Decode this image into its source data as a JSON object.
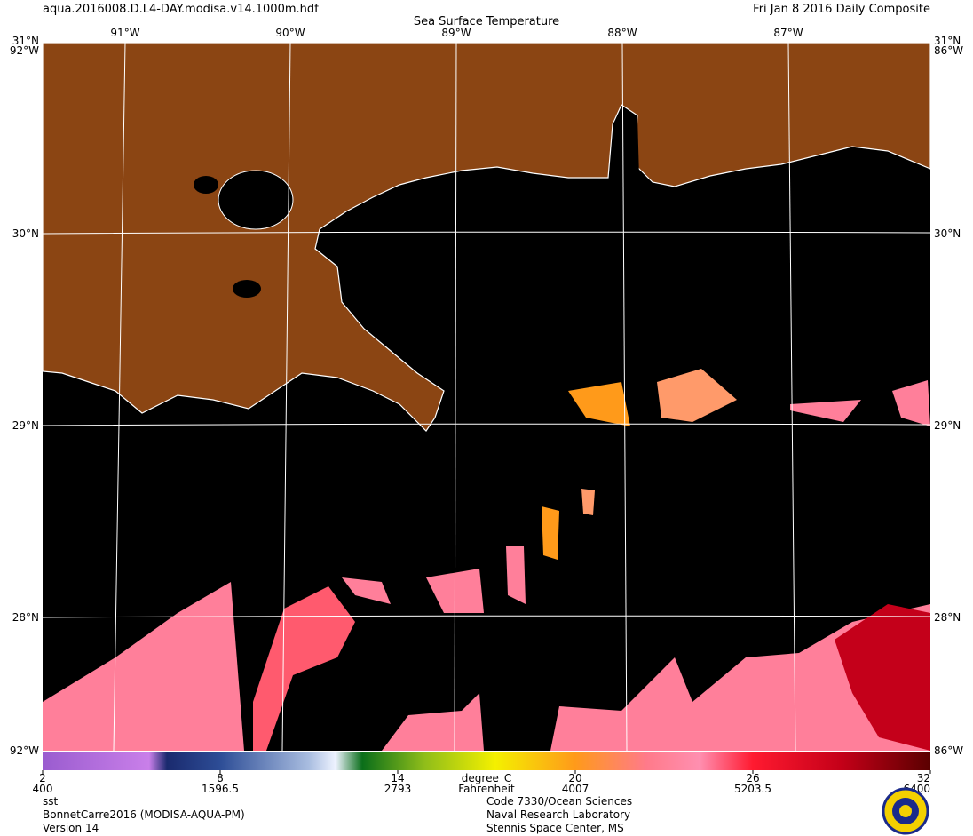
{
  "header": {
    "file": "aqua.2016008.D.L4-DAY.modisa.v14.1000m.hdf",
    "date": "Fri Jan  8 2016 Daily Composite",
    "title": "Sea Surface Temperature"
  },
  "map": {
    "lon_labels": [
      "91°W",
      "90°W",
      "89°W",
      "88°W",
      "87°W"
    ],
    "lat_labels": [
      "30°N",
      "29°N",
      "28°N"
    ],
    "corner_top_lat": "31°N",
    "corner_left_lon": "92°W",
    "corner_right_lon": "86°W"
  },
  "colorbar": {
    "ticks": [
      2,
      8,
      14,
      20,
      26,
      32
    ],
    "secondary": [
      400,
      1596.5,
      2793,
      4007,
      5203.5,
      6400
    ],
    "unit": "degree_C",
    "secondary_unit": "Fahrenheit"
  },
  "footer": {
    "left": [
      "sst",
      "BonnetCarre2016 (MODISA-AQUA-PM)",
      "Version 14"
    ],
    "right": [
      "Code 7330/Ocean Sciences",
      "Naval Research Laboratory",
      "Stennis Space Center, MS"
    ]
  }
}
